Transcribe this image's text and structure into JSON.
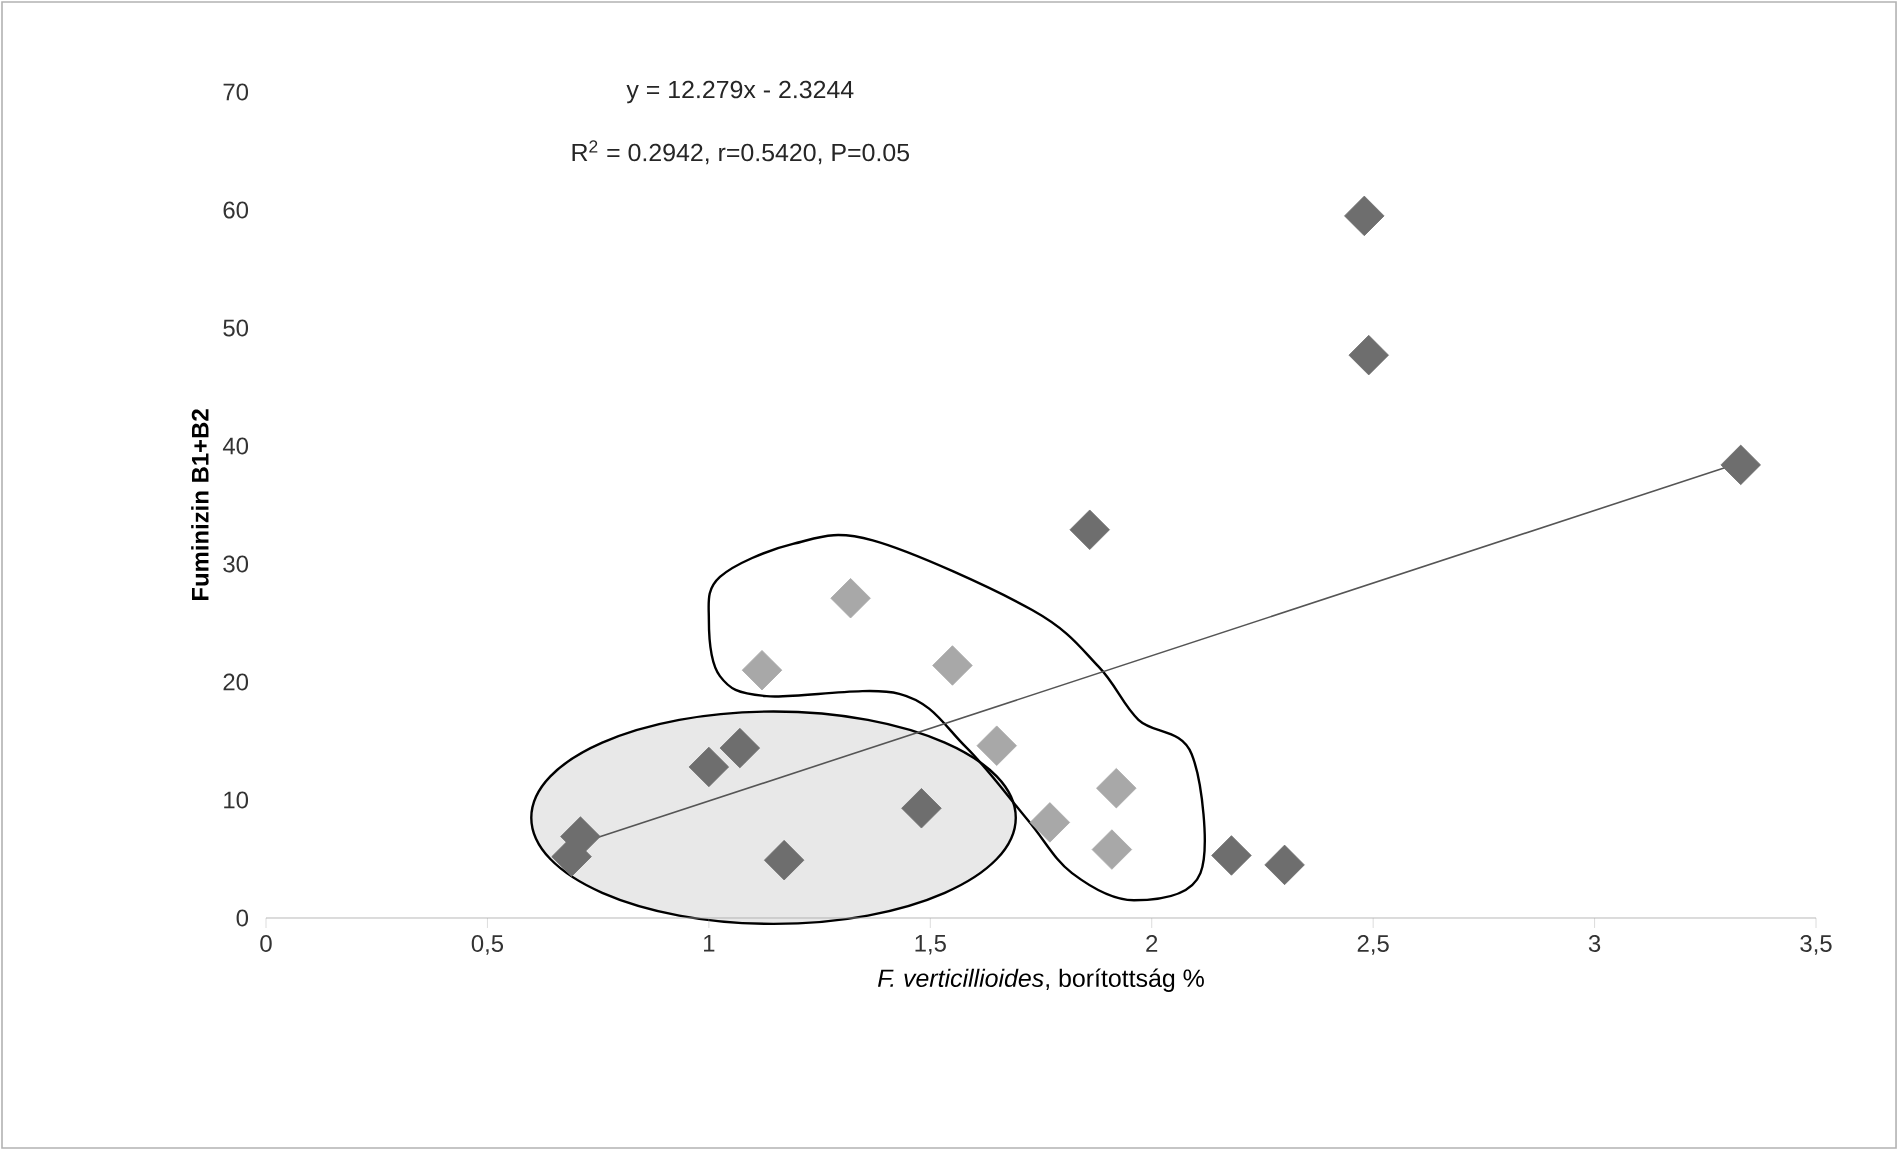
{
  "chart_data": {
    "type": "scatter",
    "xlabel": "*F. verticillioides*, borítottság %",
    "ylabel": "Fuminizin B1+B2",
    "annotations": [
      "y = 12.279x - 2.3244",
      "R$^{2}$ = 0.2942, r=0.5420, P=0.05"
    ],
    "series": [
      {
        "color": "#6e6e6e",
        "x": [
          2.48,
          2.49,
          3.33,
          1.86,
          2.18,
          2.3,
          1.0,
          1.07,
          1.48,
          1.17,
          0.71,
          0.69
        ],
        "values": [
          59.5,
          47.7,
          38.4,
          32.9,
          5.3,
          4.5,
          12.8,
          14.4,
          9.3,
          4.9,
          6.9,
          5.2
        ]
      },
      {
        "color": "#a8a8a8",
        "x": [
          1.32,
          1.12,
          1.55,
          1.65,
          1.92,
          1.77,
          1.91
        ],
        "values": [
          27.1,
          21.0,
          21.4,
          14.6,
          11.0,
          8.1,
          5.8
        ]
      },
      {
        "type": "line",
        "marker": "none",
        "color": "#555555",
        "x": [
          0.69,
          3.33
        ],
        "values": [
          6.1,
          38.6
        ]
      }
    ],
    "marker": "diamond",
    "grid": false,
    "xlim": [
      0,
      3.5
    ],
    "xticks": [
      0,
      {
        "value": 0.5,
        "label": "0,5"
      },
      1,
      {
        "value": 1.5,
        "label": "1,5"
      },
      2,
      {
        "value": 2.5,
        "label": "2,5"
      },
      3,
      {
        "value": 3.5,
        "label": "3,5"
      }
    ],
    "ylim": [
      0,
      70
    ],
    "yticks": [
      0,
      10,
      20,
      30,
      40,
      50,
      60,
      70
    ]
  }
}
